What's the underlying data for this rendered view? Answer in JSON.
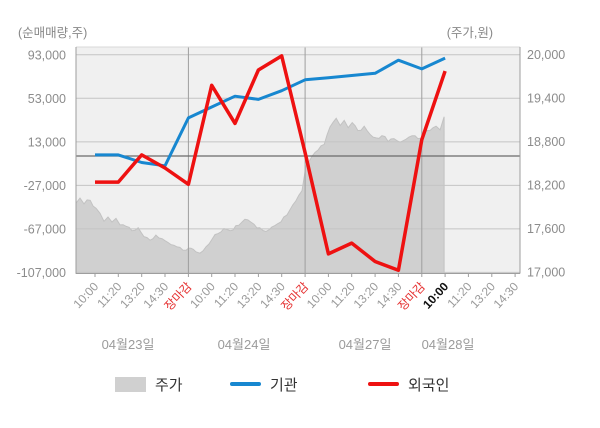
{
  "legend": [
    {
      "label": "주가",
      "type": "area",
      "color": "#d0d0d0"
    },
    {
      "label": "기관",
      "type": "line",
      "color": "#1787d0"
    },
    {
      "label": "외국인",
      "type": "line",
      "color": "#ee1111"
    }
  ],
  "colors": {
    "plot_background": "#f0f0f0",
    "price_area": "#d0d0d0",
    "institution_line": "#1787d0",
    "foreigner_line": "#ee1111",
    "close_tick_label": "#e53030",
    "current_tick_label": "#111111",
    "axis_text": "#8c8c8c",
    "day_text": "#9b9b9b",
    "grid_line": "#c4c4c4",
    "day_separator": "#9e9e9e",
    "zero_line": "#6a6a6a"
  },
  "chart_data": {
    "type": "mixed-line-area",
    "left_axis": {
      "label": "(순매매량,주)",
      "ticks": [
        93000,
        53000,
        13000,
        -27000,
        -67000,
        -107000
      ]
    },
    "right_axis": {
      "label": "(주가,원)",
      "ticks": [
        20000,
        19400,
        18800,
        18200,
        17600,
        17000
      ]
    },
    "baseline": {
      "net_volume": 0,
      "price": 18600
    },
    "x_ticks": [
      {
        "label": "10:00",
        "style": "normal"
      },
      {
        "label": "11:20",
        "style": "normal"
      },
      {
        "label": "13:20",
        "style": "normal"
      },
      {
        "label": "14:30",
        "style": "normal"
      },
      {
        "label": "장마감",
        "style": "close"
      },
      {
        "label": "10:00",
        "style": "normal"
      },
      {
        "label": "11:20",
        "style": "normal"
      },
      {
        "label": "13:20",
        "style": "normal"
      },
      {
        "label": "14:30",
        "style": "normal"
      },
      {
        "label": "장마감",
        "style": "close"
      },
      {
        "label": "10:00",
        "style": "normal"
      },
      {
        "label": "11:20",
        "style": "normal"
      },
      {
        "label": "13:20",
        "style": "normal"
      },
      {
        "label": "14:30",
        "style": "normal"
      },
      {
        "label": "장마감",
        "style": "close"
      },
      {
        "label": "10:00",
        "style": "current"
      },
      {
        "label": "11:20",
        "style": "normal"
      },
      {
        "label": "13:20",
        "style": "normal"
      },
      {
        "label": "14:30",
        "style": "normal"
      }
    ],
    "day_labels": [
      "04월23일",
      "04월24일",
      "04월27일",
      "04월28일"
    ],
    "series": [
      {
        "name": "주가",
        "type": "area",
        "axis": "right",
        "color": "#d0d0d0",
        "points": [
          [
            0.0,
            17950
          ],
          [
            0.009,
            18020
          ],
          [
            0.018,
            17940
          ],
          [
            0.032,
            17990
          ],
          [
            0.045,
            17880
          ],
          [
            0.054,
            17810
          ],
          [
            0.063,
            17700
          ],
          [
            0.072,
            17760
          ],
          [
            0.081,
            17690
          ],
          [
            0.09,
            17740
          ],
          [
            0.099,
            17650
          ],
          [
            0.113,
            17630
          ],
          [
            0.126,
            17570
          ],
          [
            0.14,
            17610
          ],
          [
            0.153,
            17490
          ],
          [
            0.167,
            17440
          ],
          [
            0.18,
            17510
          ],
          [
            0.194,
            17460
          ],
          [
            0.207,
            17410
          ],
          [
            0.221,
            17370
          ],
          [
            0.234,
            17340
          ],
          [
            0.248,
            17300
          ],
          [
            0.259,
            17330
          ],
          [
            0.27,
            17280
          ],
          [
            0.279,
            17260
          ],
          [
            0.293,
            17350
          ],
          [
            0.306,
            17450
          ],
          [
            0.32,
            17530
          ],
          [
            0.333,
            17600
          ],
          [
            0.347,
            17570
          ],
          [
            0.36,
            17640
          ],
          [
            0.374,
            17690
          ],
          [
            0.387,
            17720
          ],
          [
            0.401,
            17660
          ],
          [
            0.414,
            17610
          ],
          [
            0.428,
            17560
          ],
          [
            0.441,
            17620
          ],
          [
            0.455,
            17670
          ],
          [
            0.468,
            17760
          ],
          [
            0.482,
            17860
          ],
          [
            0.495,
            17980
          ],
          [
            0.509,
            18120
          ],
          [
            0.519,
            18500
          ],
          [
            0.532,
            18600
          ],
          [
            0.545,
            18680
          ],
          [
            0.559,
            18760
          ],
          [
            0.572,
            19000
          ],
          [
            0.586,
            19120
          ],
          [
            0.595,
            19020
          ],
          [
            0.604,
            19090
          ],
          [
            0.613,
            18990
          ],
          [
            0.622,
            19060
          ],
          [
            0.635,
            18950
          ],
          [
            0.649,
            19010
          ],
          [
            0.662,
            18900
          ],
          [
            0.676,
            18850
          ],
          [
            0.689,
            18880
          ],
          [
            0.703,
            18800
          ],
          [
            0.716,
            18840
          ],
          [
            0.73,
            18790
          ],
          [
            0.743,
            18830
          ],
          [
            0.757,
            18880
          ],
          [
            0.77,
            18840
          ],
          [
            0.784,
            18900
          ],
          [
            0.797,
            18950
          ],
          [
            0.811,
            19010
          ],
          [
            0.82,
            18960
          ],
          [
            0.829,
            19140
          ]
        ]
      },
      {
        "name": "기관",
        "type": "line",
        "axis": "left",
        "color": "#1787d0",
        "values": [
          1000,
          1000,
          -6000,
          -9000,
          35000,
          45000,
          55000,
          52000,
          60000,
          70000,
          72000,
          74000,
          76000,
          88000,
          80000,
          90000
        ]
      },
      {
        "name": "외국인",
        "type": "line",
        "axis": "left",
        "color": "#ee1111",
        "values": [
          -24000,
          -24000,
          1000,
          -11000,
          -26000,
          65000,
          30000,
          79000,
          92000,
          3000,
          -90000,
          -80000,
          -97000,
          -105000,
          15000,
          78000
        ]
      }
    ]
  }
}
